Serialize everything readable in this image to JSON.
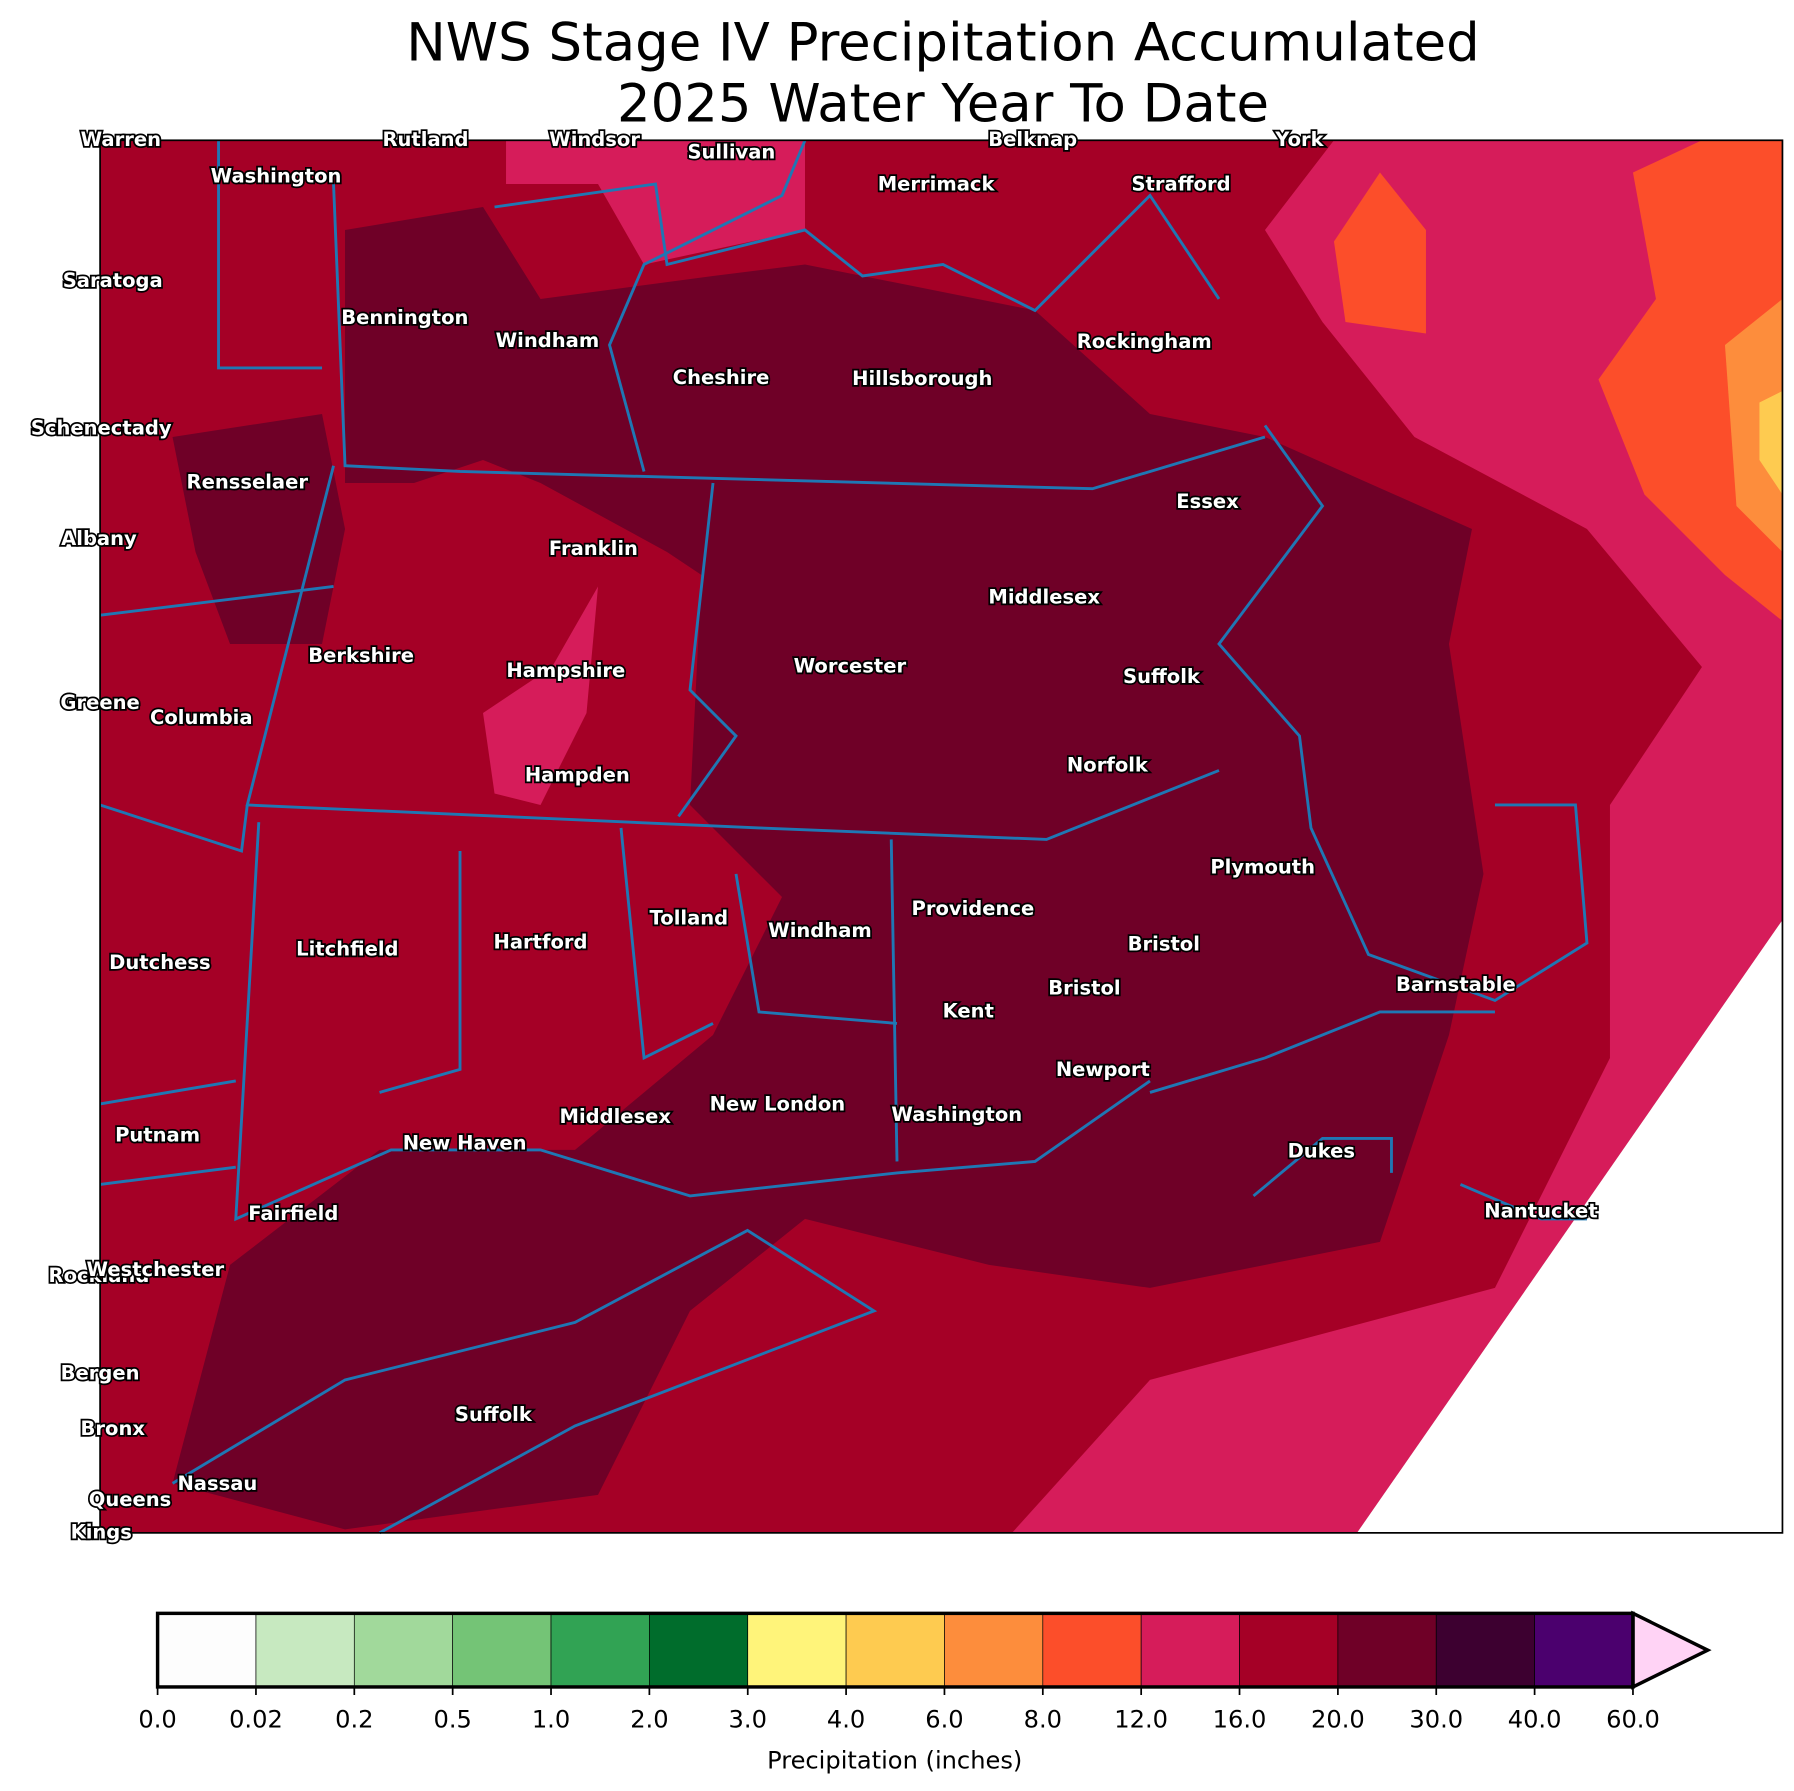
{
  "title": "NWS Stage IV Precipitation Accumulated",
  "subtitle": "2025 Water Year To Date",
  "counties": [
    "Warren",
    "Rutland",
    "Windsor",
    "Sullivan",
    "Belknap",
    "York",
    "Washington",
    "Merrimack",
    "Strafford",
    "Saratoga",
    "Bennington",
    "Windham",
    "Rockingham",
    "Cheshire",
    "Hillsborough",
    "Schenectady",
    "Rensselaer",
    "Essex",
    "Albany",
    "Franklin",
    "Middlesex",
    "Berkshire",
    "Hampshire",
    "Worcester",
    "Suffolk",
    "Greene",
    "Columbia",
    "Norfolk",
    "Hampden",
    "Plymouth",
    "Providence",
    "Tolland",
    "Windham",
    "Bristol",
    "Hartford",
    "Litchfield",
    "Dutchess",
    "Barnstable",
    "Bristol",
    "Kent",
    "Newport",
    "New London",
    "Middlesex",
    "Washington",
    "Putnam",
    "New Haven",
    "Dukes",
    "Fairfield",
    "Nantucket",
    "Rockland",
    "Westchester",
    "Bergen",
    "Suffolk",
    "Bronx",
    "Nassau",
    "Queens",
    "Kings"
  ],
  "colorbar": {
    "label": "Precipitation (inches)",
    "ticks": [
      {
        "value": 0,
        "label": "0.0"
      },
      0.02,
      0.2,
      0.5,
      {
        "value": 1,
        "label": "1.0"
      },
      {
        "value": 2,
        "label": "2.0"
      },
      {
        "value": 3,
        "label": "3.0"
      },
      {
        "value": 4,
        "label": "4.0"
      },
      {
        "value": 6,
        "label": "6.0"
      },
      {
        "value": 8,
        "label": "8.0"
      },
      {
        "value": 12,
        "label": "12.0"
      },
      {
        "value": 16,
        "label": "16.0"
      },
      {
        "value": 20,
        "label": "20.0"
      },
      {
        "value": 30,
        "label": "30.0"
      },
      {
        "value": 40,
        "label": "40.0"
      },
      {
        "value": 60,
        "label": "60.0"
      }
    ],
    "colors": [
      "#fdfdfd",
      "#c7e9c0",
      "#a1d99b",
      "#74c476",
      "#31a354",
      "#006d2c",
      "#fff47a",
      "#fecb50",
      "#fd8d3c",
      "#fc4e2a",
      "#d61c5a",
      "#a50026",
      "#6f0027",
      "#3d0030",
      "#4b006e"
    ],
    "extend_color": "#ffd3f5"
  }
}
